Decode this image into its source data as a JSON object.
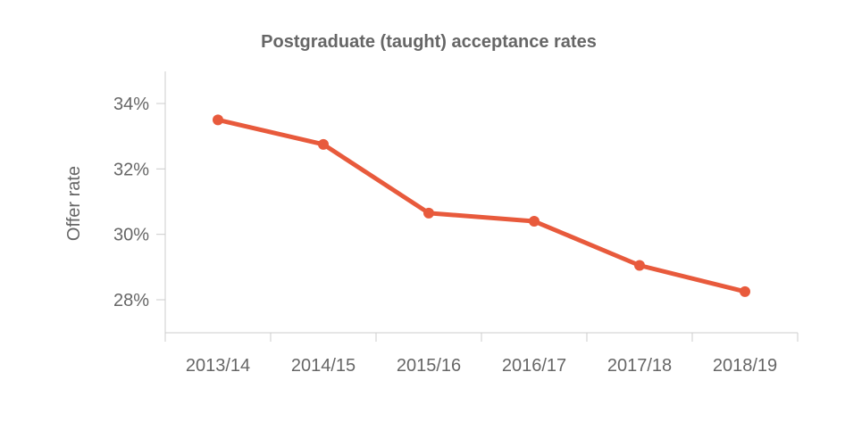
{
  "chart_data": {
    "type": "line",
    "title": "Postgraduate (taught) acceptance rates",
    "xlabel": "",
    "ylabel": "Offer rate",
    "categories": [
      "2013/14",
      "2014/15",
      "2015/16",
      "2016/17",
      "2017/18",
      "2018/19"
    ],
    "series": [
      {
        "values": [
          33.5,
          32.75,
          30.65,
          30.4,
          29.05,
          28.25
        ],
        "color": "#e85a3c"
      }
    ],
    "ylim": [
      27,
      35
    ],
    "yticks": [
      28,
      30,
      32,
      34
    ],
    "ytick_labels": [
      "28%",
      "30%",
      "32%",
      "34%"
    ],
    "grid": false,
    "legend": "none"
  }
}
